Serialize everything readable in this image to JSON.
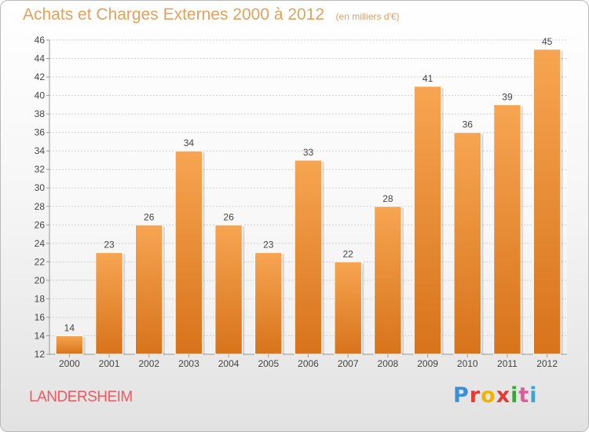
{
  "header": {
    "title": "Achats et Charges Externes 2000 à 2012",
    "subtitle": "(en milliers d'€)"
  },
  "footer": {
    "place": "LANDERSHEIM",
    "logo": [
      "P",
      "r",
      "o",
      "x",
      "i",
      "t",
      "i"
    ]
  },
  "colors": {
    "bar_top": "#f7a552",
    "bar_bottom": "#d7731b",
    "grid": "#cfcfcf",
    "title": "#e5a05b",
    "place": "#ee5a62"
  },
  "chart_data": {
    "type": "bar",
    "title": "Achats et Charges Externes 2000 à 2012",
    "subtitle": "(en milliers d'€)",
    "categories": [
      "2000",
      "2001",
      "2002",
      "2003",
      "2004",
      "2005",
      "2006",
      "2007",
      "2008",
      "2009",
      "2010",
      "2011",
      "2012"
    ],
    "values": [
      14,
      23,
      26,
      34,
      26,
      23,
      33,
      22,
      28,
      41,
      36,
      39,
      45
    ],
    "ylim": [
      12,
      46
    ],
    "yticks": [
      12,
      14,
      16,
      18,
      20,
      22,
      24,
      26,
      28,
      30,
      32,
      34,
      36,
      38,
      40,
      42,
      44,
      46
    ],
    "grid": true,
    "data_labels": true
  }
}
